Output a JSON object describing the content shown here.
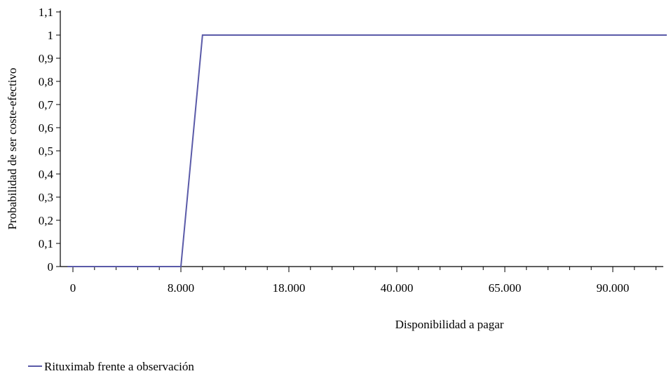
{
  "chart_data": {
    "type": "line",
    "xlabel": "Disponibilidad a pagar",
    "ylabel": "Probabilidad de ser coste-efectivo",
    "x_categories": [
      "0",
      "8.000",
      "18.000",
      "40.000",
      "65.000",
      "90.000"
    ],
    "y_ticks": [
      "0",
      "0,1",
      "0,2",
      "0,3",
      "0,4",
      "0,5",
      "0,6",
      "0,7",
      "0,8",
      "0,9",
      "1",
      "1,1"
    ],
    "ylim": [
      0,
      1.1
    ],
    "grid": false,
    "legend_position": "bottom-left",
    "series": [
      {
        "name": "Rituximab frente a observación",
        "color": "#5a5aa8",
        "points": [
          {
            "x": -0.05,
            "y": 0
          },
          {
            "x": 1.0,
            "y": 0
          },
          {
            "x": 1.2,
            "y": 1
          },
          {
            "x": 5.5,
            "y": 1
          }
        ]
      }
    ]
  }
}
